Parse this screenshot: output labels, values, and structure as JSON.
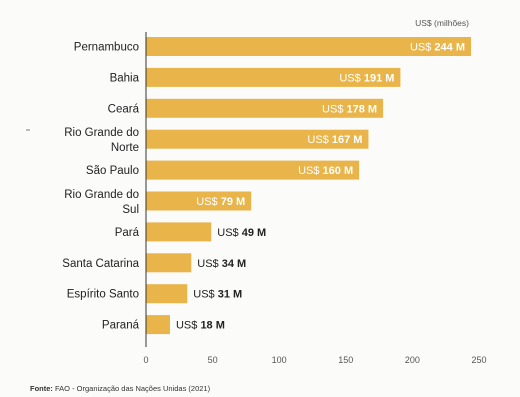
{
  "chart_data": {
    "type": "bar",
    "orientation": "horizontal",
    "unit_label": "US$ (milhões)",
    "categories": [
      "Pernambuco",
      "Bahia",
      "Ceará",
      "Rio Grande do Norte",
      "São Paulo",
      "Rio Grande do Sul",
      "Pará",
      "Santa Catarina",
      "Espírito Santo",
      "Paraná"
    ],
    "category_lines": [
      [
        "Pernambuco"
      ],
      [
        "Bahia"
      ],
      [
        "Ceará"
      ],
      [
        "Rio Grande do",
        "Norte"
      ],
      [
        "São Paulo"
      ],
      [
        "Rio Grande do",
        "Sul"
      ],
      [
        "Pará"
      ],
      [
        "Santa Catarina"
      ],
      [
        "Espírito Santo"
      ],
      [
        "Paraná"
      ]
    ],
    "values": [
      244,
      191,
      178,
      167,
      160,
      79,
      49,
      34,
      31,
      18
    ],
    "value_labels": [
      {
        "prefix": "US$ ",
        "amount": "244 M"
      },
      {
        "prefix": "US$ ",
        "amount": "191 M"
      },
      {
        "prefix": "US$ ",
        "amount": "178 M"
      },
      {
        "prefix": "US$ ",
        "amount": "167 M"
      },
      {
        "prefix": "US$ ",
        "amount": "160 M"
      },
      {
        "prefix": "US$ ",
        "amount": "79 M"
      },
      {
        "prefix": "US$ ",
        "amount": "49 M"
      },
      {
        "prefix": "US$ ",
        "amount": "34 M"
      },
      {
        "prefix": "US$ ",
        "amount": "31 M"
      },
      {
        "prefix": "US$ ",
        "amount": "18 M"
      }
    ],
    "xlim": [
      0,
      250
    ],
    "xticks": [
      0,
      50,
      100,
      150,
      200,
      250
    ],
    "grid": false,
    "bar_color": "#e9b54b"
  },
  "source": {
    "label": "Fonte:",
    "text": " FAO - Organização das Nações Unidas (2021)"
  }
}
